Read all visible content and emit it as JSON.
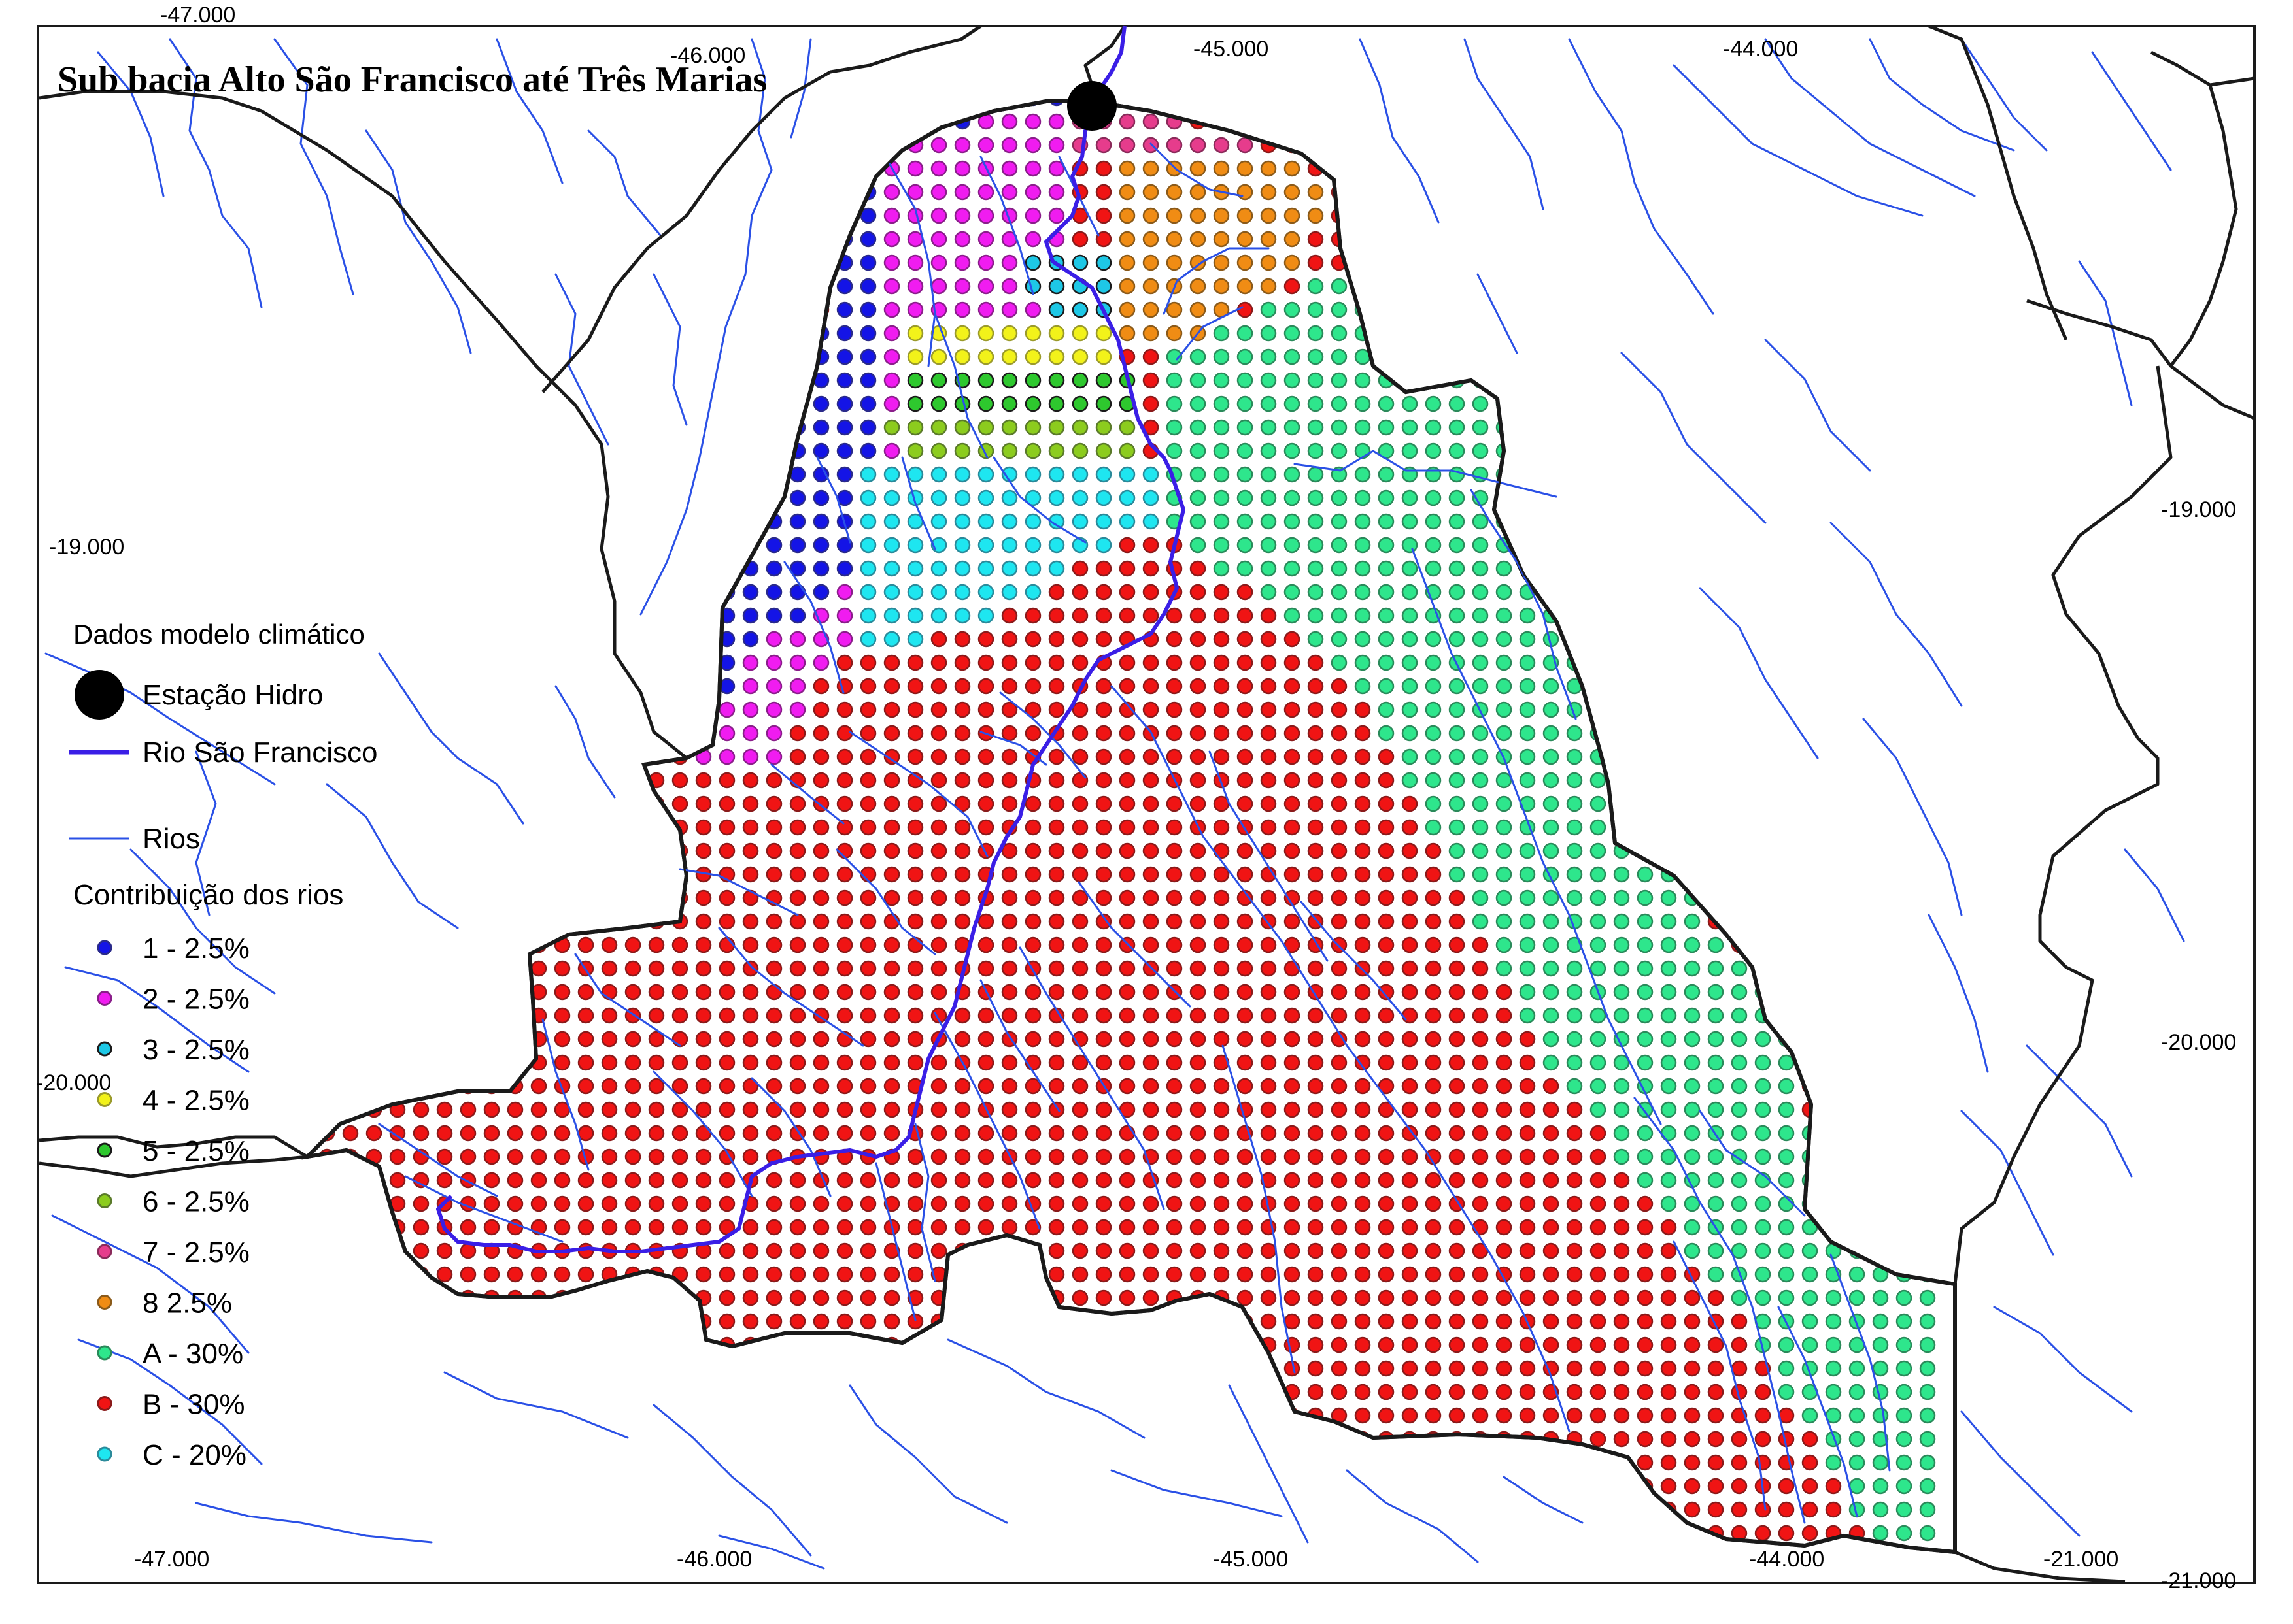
{
  "title": "Sub bacia Alto São Francisco até Três Marias",
  "coords": {
    "top": [
      "-47.000",
      "-46.000",
      "-45.000",
      "-44.000"
    ],
    "bottom": [
      "-47.000",
      "-46.000",
      "-45.000",
      "-44.000",
      "-21.000"
    ],
    "left": [
      "-19.000",
      "-20.000"
    ],
    "right": [
      "-19.000",
      "-20.000",
      "-21.000"
    ]
  },
  "legend": {
    "heading": "Dados modelo climático",
    "station_label": "Estação Hidro",
    "main_river_label": "Rio São Francisco",
    "rivers_label": "Rios",
    "contrib_heading": "Contribuição dos rios",
    "items": [
      {
        "label": "1 - 2.5%",
        "color": "#1414e6",
        "stroke": "#2a2a8a"
      },
      {
        "label": "2 - 2.5%",
        "color": "#f01cf0",
        "stroke": "#8a1e8a"
      },
      {
        "label": "3 - 2.5%",
        "color": "#1ec8e6",
        "stroke": "#1a1a1a"
      },
      {
        "label": "4 - 2.5%",
        "color": "#f2f21a",
        "stroke": "#9a9a2a"
      },
      {
        "label": "5 - 2.5%",
        "color": "#2ec82e",
        "stroke": "#1a1a1a"
      },
      {
        "label": "6 - 2.5%",
        "color": "#8ccc1e",
        "stroke": "#5a7a2a"
      },
      {
        "label": "7 - 2.5%",
        "color": "#e63c8c",
        "stroke": "#8a2a5a"
      },
      {
        "label": "8  2.5%",
        "color": "#f08c14",
        "stroke": "#8a5a1a"
      },
      {
        "label": "A - 30%",
        "color": "#2ee68c",
        "stroke": "#2a8a5a"
      },
      {
        "label": "B - 30%",
        "color": "#f01414",
        "stroke": "#8a1a1a"
      },
      {
        "label": "C - 20%",
        "color": "#1ee6f0",
        "stroke": "#2a8a9a"
      }
    ]
  },
  "colors": {
    "main_river": "#3a1ee6",
    "rivers": "#2a50e6",
    "boundary": "#1a1a1a",
    "station": "#000000"
  }
}
